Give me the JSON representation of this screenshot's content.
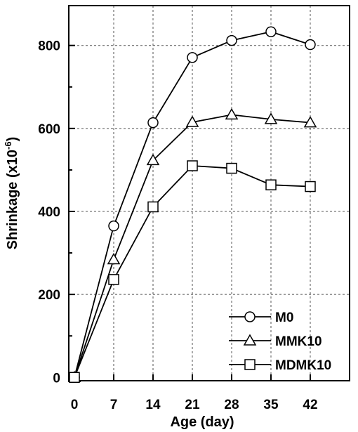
{
  "chart_data": {
    "type": "line",
    "title": "",
    "xlabel": "Age (day)",
    "ylabel": "Shrinkage (x10",
    "ylabel_exponent": "-6",
    "ylabel_suffix": ")",
    "x": [
      0,
      7,
      14,
      21,
      28,
      35,
      42
    ],
    "xticks": [
      0,
      7,
      14,
      21,
      28,
      35,
      42
    ],
    "yticks": [
      0,
      200,
      400,
      600,
      800
    ],
    "xlim": [
      -1,
      49
    ],
    "ylim": [
      -8,
      896
    ],
    "grid": true,
    "legend_position": "bottom-right",
    "series": [
      {
        "name": "M0",
        "marker": "circle",
        "values": [
          0,
          365,
          614,
          771,
          812,
          833,
          802
        ]
      },
      {
        "name": "MMK10",
        "marker": "triangle",
        "values": [
          0,
          284,
          523,
          615,
          633,
          622,
          614
        ]
      },
      {
        "name": "MDMK10",
        "marker": "square",
        "values": [
          0,
          236,
          411,
          510,
          504,
          464,
          460
        ]
      }
    ]
  },
  "colors": {
    "line": "#000000",
    "marker_fill": "#ffffff",
    "grid": "#555555"
  }
}
